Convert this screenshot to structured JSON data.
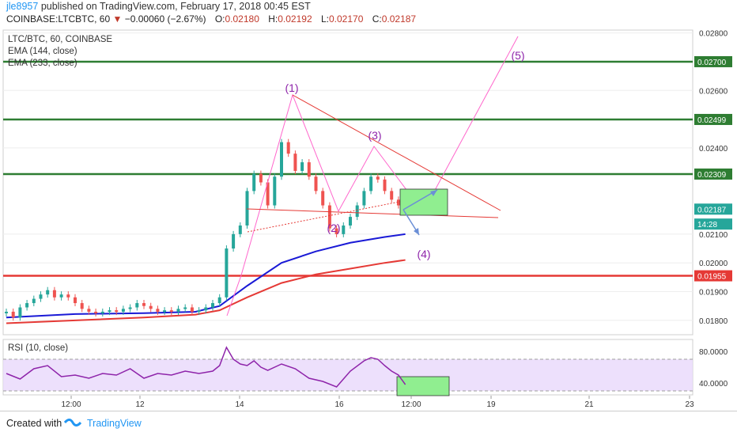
{
  "header": {
    "user": "jle8957",
    "published": "published on TradingView.com, February 17, 2018 00:45 EST",
    "symbol": "COINBASE:LTCBTC, 60",
    "change": "−0.00060 (−2.67%)",
    "open_label": "O:",
    "open": "0.02180",
    "high_label": "H:",
    "high": "0.02192",
    "low_label": "L:",
    "low": "0.02170",
    "close_label": "C:",
    "close": "0.02187",
    "change_icon": "down-triangle-icon",
    "down_color": "#c0392b"
  },
  "legend": {
    "title": "LTC/BTC, 60, COINBASE",
    "ema1": "EMA (144, close)",
    "ema2": "EMA (233, close)",
    "rsi": "RSI (10, close)"
  },
  "footer": {
    "made": "Created with",
    "brand": "TradingView",
    "logo_icon": "tradingview-logo-icon"
  },
  "chart_data": {
    "type": "line",
    "main": {
      "ylim": [
        0.0175,
        0.0281
      ],
      "y_ticks": [
        "0.02800",
        "0.02600",
        "0.02400",
        "0.02100",
        "0.02000",
        "0.01900",
        "0.01800"
      ],
      "price_tags": [
        {
          "value": 0.027,
          "label": "0.02700",
          "color": "#2e7d32"
        },
        {
          "value": 0.02499,
          "label": "0.02499",
          "color": "#2e7d32"
        },
        {
          "value": 0.02309,
          "label": "0.02309",
          "color": "#2e7d32"
        },
        {
          "value": 0.02187,
          "label": "0.02187",
          "color": "#26a69a"
        },
        {
          "value": 0.02135,
          "label": "14:28",
          "color": "#26a69a"
        },
        {
          "value": 0.01955,
          "label": "0.01955",
          "color": "#e53935"
        }
      ],
      "horizontal_levels": [
        {
          "value": 0.027,
          "color": "#2e7d32"
        },
        {
          "value": 0.02499,
          "color": "#2e7d32"
        },
        {
          "value": 0.02309,
          "color": "#2e7d32"
        },
        {
          "value": 0.01955,
          "color": "#e53935"
        }
      ],
      "candles": [
        [
          0,
          0.0183
        ],
        [
          2,
          0.0181
        ],
        [
          4,
          0.01845
        ],
        [
          6,
          0.0186
        ],
        [
          8,
          0.01875
        ],
        [
          10,
          0.0189
        ],
        [
          12,
          0.01905
        ],
        [
          14,
          0.0188
        ],
        [
          16,
          0.0189
        ],
        [
          18,
          0.0188
        ],
        [
          20,
          0.0186
        ],
        [
          22,
          0.0184
        ],
        [
          24,
          0.0183
        ],
        [
          26,
          0.01825
        ],
        [
          28,
          0.0183
        ],
        [
          30,
          0.01835
        ],
        [
          32,
          0.0183
        ],
        [
          34,
          0.0184
        ],
        [
          36,
          0.01845
        ],
        [
          38,
          0.0186
        ],
        [
          40,
          0.0185
        ],
        [
          42,
          0.0184
        ],
        [
          44,
          0.0183
        ],
        [
          46,
          0.01835
        ],
        [
          48,
          0.0183
        ],
        [
          50,
          0.0184
        ],
        [
          52,
          0.01845
        ],
        [
          54,
          0.0183
        ],
        [
          56,
          0.01835
        ],
        [
          58,
          0.01845
        ],
        [
          60,
          0.0186
        ],
        [
          62,
          0.0188
        ],
        [
          64,
          0.0205
        ],
        [
          66,
          0.021
        ],
        [
          68,
          0.0213
        ],
        [
          70,
          0.0225
        ],
        [
          72,
          0.0231
        ],
        [
          74,
          0.0228
        ],
        [
          76,
          0.022
        ],
        [
          78,
          0.023
        ],
        [
          80,
          0.0242
        ],
        [
          82,
          0.0238
        ],
        [
          84,
          0.0232
        ],
        [
          86,
          0.0235
        ],
        [
          88,
          0.023
        ],
        [
          90,
          0.0225
        ],
        [
          92,
          0.022
        ],
        [
          94,
          0.0212
        ],
        [
          96,
          0.021
        ],
        [
          98,
          0.0213
        ],
        [
          100,
          0.0216
        ],
        [
          102,
          0.022
        ],
        [
          104,
          0.0225
        ],
        [
          106,
          0.023
        ],
        [
          108,
          0.0229
        ],
        [
          110,
          0.0225
        ],
        [
          112,
          0.0222
        ],
        [
          114,
          0.022
        ],
        [
          116,
          0.02187
        ]
      ],
      "ema144": [
        [
          0,
          0.0181
        ],
        [
          20,
          0.01822
        ],
        [
          40,
          0.01825
        ],
        [
          55,
          0.0183
        ],
        [
          62,
          0.0185
        ],
        [
          70,
          0.0192
        ],
        [
          80,
          0.02
        ],
        [
          90,
          0.0204
        ],
        [
          100,
          0.0207
        ],
        [
          110,
          0.0209
        ],
        [
          116,
          0.021
        ]
      ],
      "ema233": [
        [
          0,
          0.0179
        ],
        [
          20,
          0.018
        ],
        [
          40,
          0.0181
        ],
        [
          55,
          0.0182
        ],
        [
          62,
          0.01835
        ],
        [
          70,
          0.0188
        ],
        [
          80,
          0.0193
        ],
        [
          90,
          0.0196
        ],
        [
          100,
          0.0198
        ],
        [
          110,
          0.02
        ],
        [
          116,
          0.0201
        ]
      ],
      "wave_labels": [
        "(1)",
        "(2)",
        "(3)",
        "(4)",
        "(5)"
      ]
    },
    "rsi": {
      "ylim": [
        25,
        95
      ],
      "y_ticks": [
        "80.0000",
        "40.0000"
      ],
      "band": [
        70,
        30
      ],
      "values": [
        [
          0,
          52
        ],
        [
          4,
          45
        ],
        [
          8,
          58
        ],
        [
          12,
          62
        ],
        [
          16,
          48
        ],
        [
          20,
          50
        ],
        [
          24,
          46
        ],
        [
          28,
          52
        ],
        [
          32,
          50
        ],
        [
          36,
          58
        ],
        [
          40,
          46
        ],
        [
          44,
          52
        ],
        [
          48,
          50
        ],
        [
          52,
          55
        ],
        [
          56,
          52
        ],
        [
          60,
          55
        ],
        [
          62,
          62
        ],
        [
          64,
          85
        ],
        [
          66,
          70
        ],
        [
          68,
          64
        ],
        [
          70,
          62
        ],
        [
          72,
          68
        ],
        [
          74,
          60
        ],
        [
          76,
          56
        ],
        [
          80,
          64
        ],
        [
          84,
          58
        ],
        [
          88,
          46
        ],
        [
          92,
          42
        ],
        [
          96,
          35
        ],
        [
          98,
          45
        ],
        [
          100,
          55
        ],
        [
          104,
          68
        ],
        [
          106,
          72
        ],
        [
          108,
          70
        ],
        [
          110,
          62
        ],
        [
          112,
          55
        ],
        [
          114,
          50
        ],
        [
          116,
          38
        ]
      ]
    },
    "x_ticks": [
      "12:00",
      "12",
      "14",
      "16",
      "12:00",
      "19",
      "21",
      "23"
    ]
  }
}
